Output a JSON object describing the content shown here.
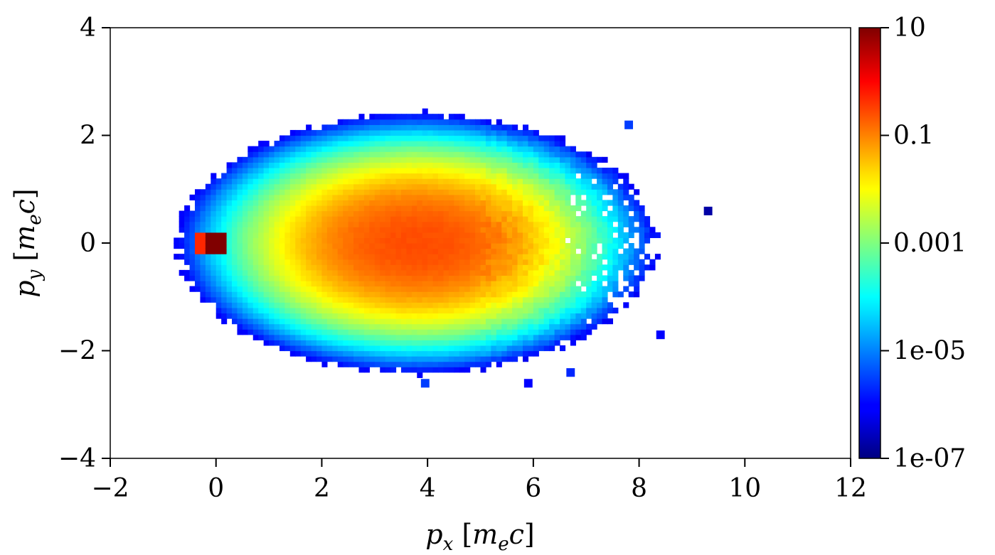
{
  "chart_data": {
    "type": "heatmap",
    "title": "",
    "xlabel": {
      "symbol": "p",
      "sub": "x",
      "unit_open": "[",
      "unit_m": "m",
      "unit_sub": "e",
      "unit_c": "c",
      "unit_close": "]"
    },
    "ylabel": {
      "symbol": "p",
      "sub": "y",
      "unit_open": "[",
      "unit_m": "m",
      "unit_sub": "e",
      "unit_c": "c",
      "unit_close": "]"
    },
    "xlim": [
      -2,
      12
    ],
    "ylim": [
      -4,
      4
    ],
    "x_ticks": [
      -2,
      0,
      2,
      4,
      6,
      8,
      10,
      12
    ],
    "y_ticks": [
      -4,
      -2,
      0,
      2,
      4
    ],
    "x_tick_labels": [
      "−2",
      "0",
      "2",
      "4",
      "6",
      "8",
      "10",
      "12"
    ],
    "y_tick_labels": [
      "−4",
      "−2",
      "0",
      "2",
      "4"
    ],
    "colorbar": {
      "scale": "log",
      "colormap": "jet",
      "range": [
        1e-07,
        10
      ],
      "ticks": [
        10,
        0.1,
        0.001,
        1e-05,
        1e-07
      ],
      "tick_labels": [
        "10",
        "0.1",
        "0.001",
        "1e-05",
        "1e-07"
      ]
    },
    "bin_width": 0.1,
    "background": "#ffffff",
    "distribution": {
      "shell": {
        "center_x": 3.8,
        "semi_axis_x": 4.5,
        "semi_axis_y": 2.4,
        "outer_edge_value": 1e-06,
        "peak_value": 0.25
      },
      "core_blob": {
        "x_range": [
          -0.35,
          0.25
        ],
        "y_range": [
          -0.2,
          0.2
        ],
        "peak_value": 10
      },
      "outliers": [
        {
          "x": 7.8,
          "y": 2.2,
          "value": 3e-06
        },
        {
          "x": 9.3,
          "y": 0.6,
          "value": 2e-07
        },
        {
          "x": 8.4,
          "y": -1.7,
          "value": 1e-06
        },
        {
          "x": 6.7,
          "y": -2.4,
          "value": 2e-06
        },
        {
          "x": 5.9,
          "y": -2.6,
          "value": 1e-06
        },
        {
          "x": 3.95,
          "y": -2.6,
          "value": 3e-06
        }
      ]
    }
  }
}
